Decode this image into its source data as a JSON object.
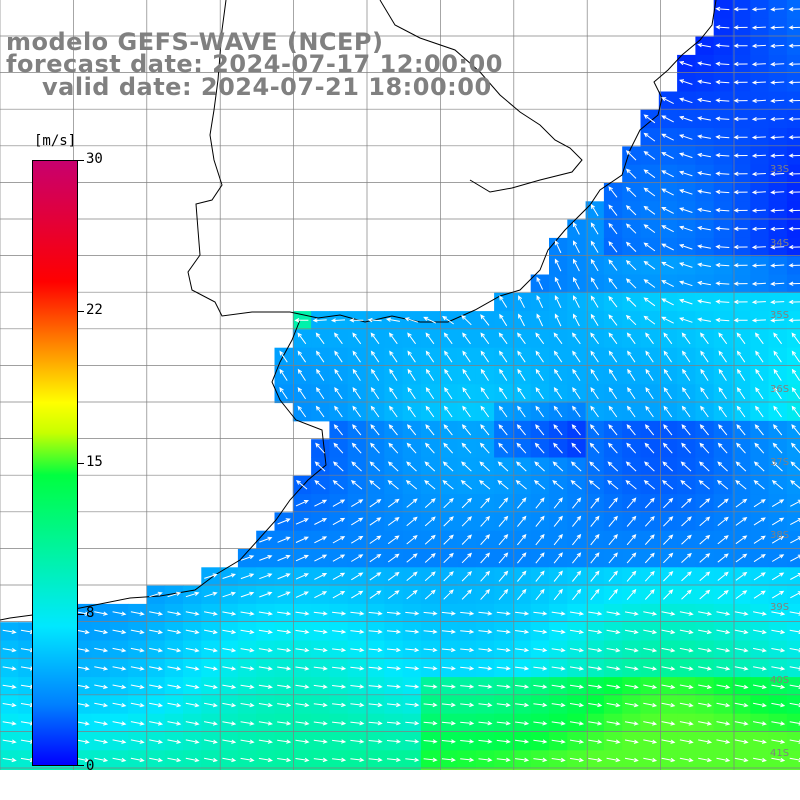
{
  "title": {
    "model": "modelo GEFS-WAVE (NCEP)",
    "forecast": "forecast date: 2024-07-17 12:00:00",
    "valid": "valid date: 2024-07-21 18:00:00"
  },
  "colorbar": {
    "unit": "[m/s]",
    "ticks": [
      "30",
      "22",
      "15",
      "8",
      "0"
    ],
    "min": 0,
    "max": 30,
    "colors": [
      "#0000ff",
      "#0080ff",
      "#00e8ff",
      "#00ff40",
      "#ffff00",
      "#ff8000",
      "#ff0000",
      "#c8006e"
    ]
  },
  "map": {
    "lat_labels": [
      "33S",
      "34S",
      "35S",
      "36S",
      "37S",
      "38S",
      "39S",
      "40S",
      "41S"
    ],
    "colors": {
      "land": "#ffffff",
      "coast": "#000000",
      "grid": "#808080",
      "arrow": "#ffffff"
    }
  }
}
